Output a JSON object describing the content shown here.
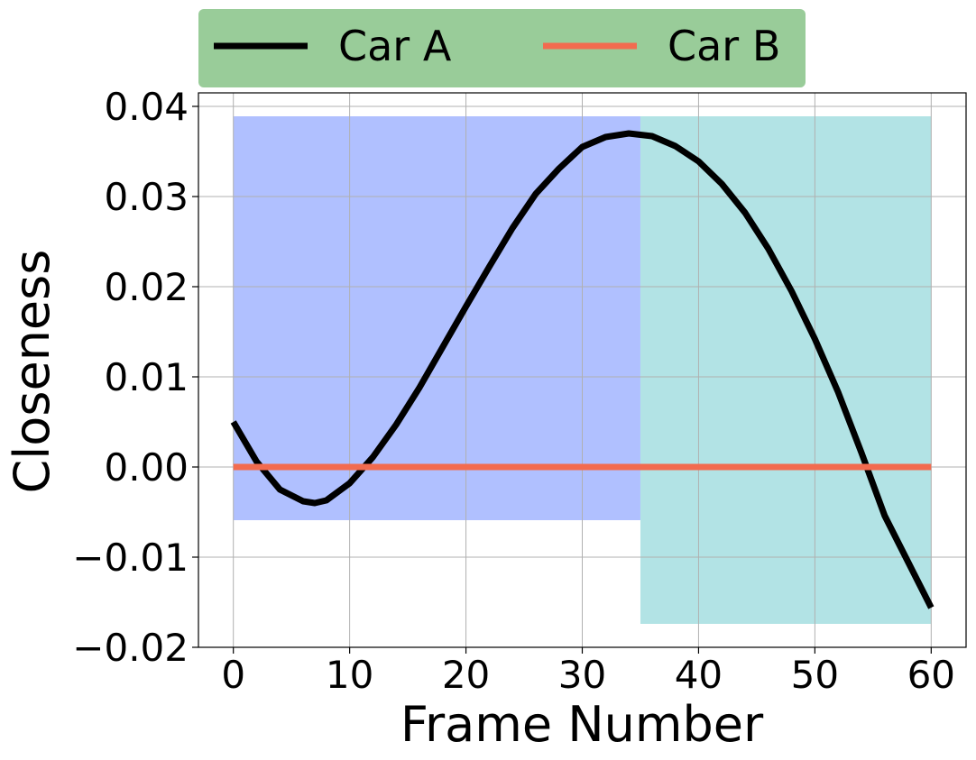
{
  "chart_data": {
    "type": "line",
    "title": "",
    "xlabel": "Frame Number",
    "ylabel": "Closeness",
    "xlim": [
      -3,
      63
    ],
    "ylim": [
      -0.02,
      0.0415
    ],
    "x_ticks": [
      0,
      10,
      20,
      30,
      40,
      50,
      60
    ],
    "x_tick_labels": [
      "0",
      "10",
      "20",
      "30",
      "40",
      "50",
      "60"
    ],
    "y_ticks": [
      -0.02,
      -0.01,
      0.0,
      0.01,
      0.02,
      0.03,
      0.04
    ],
    "y_tick_labels": [
      "−0.02",
      "−0.01",
      "0.00",
      "0.01",
      "0.02",
      "0.03",
      "0.04"
    ],
    "grid": true,
    "legend": {
      "placement": "top-center, above plot",
      "color": "#99cc99"
    },
    "shaded_regions": [
      {
        "x": [
          0,
          35
        ],
        "y": [
          -0.0059,
          0.0389
        ],
        "color": "#b0c0ff"
      },
      {
        "x": [
          35,
          60
        ],
        "y": [
          -0.0174,
          0.0389
        ],
        "color": "#b2e3e5"
      }
    ],
    "series": [
      {
        "name": "Car A",
        "color": "#000000",
        "x": [
          0,
          2,
          4,
          6,
          7,
          8,
          10,
          12,
          14,
          16,
          18,
          20,
          22,
          24,
          26,
          28,
          30,
          32,
          34,
          36,
          38,
          40,
          42,
          44,
          46,
          48,
          50,
          52,
          54,
          56,
          58,
          60
        ],
        "y": [
          0.005,
          0.0006,
          -0.0025,
          -0.0038,
          -0.004,
          -0.0037,
          -0.0018,
          0.0011,
          0.0047,
          0.0088,
          0.0133,
          0.0178,
          0.0222,
          0.0265,
          0.0303,
          0.0331,
          0.0355,
          0.0366,
          0.037,
          0.0367,
          0.0356,
          0.0339,
          0.0314,
          0.0282,
          0.0242,
          0.0195,
          0.0142,
          0.0083,
          0.0016,
          -0.0054,
          -0.0105,
          -0.0156
        ]
      },
      {
        "name": "Car B",
        "color": "#f26b4f",
        "x": [
          0,
          60
        ],
        "y": [
          0.0,
          0.0
        ]
      }
    ]
  }
}
